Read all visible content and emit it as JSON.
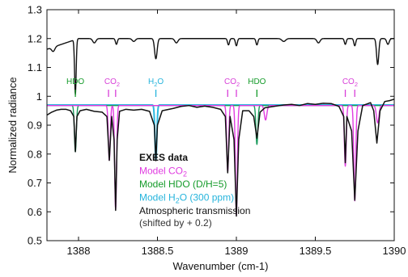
{
  "chart_data": {
    "type": "line",
    "xlabel": "Wavenumber (cm-1)",
    "ylabel": "Normalized radiance",
    "xlim": [
      1387.8,
      1390.0
    ],
    "ylim": [
      0.5,
      1.3
    ],
    "x_ticks": [
      {
        "value": 1388,
        "label": "1388"
      },
      {
        "value": 1388.5,
        "label": "1388.5"
      },
      {
        "value": 1389,
        "label": "1389"
      },
      {
        "value": 1389.5,
        "label": "1389.5"
      },
      {
        "value": 1390,
        "label": "1390"
      }
    ],
    "y_ticks": [
      {
        "value": 0.5,
        "label": "0.5"
      },
      {
        "value": 0.6,
        "label": "0.6"
      },
      {
        "value": 0.7,
        "label": "0.7"
      },
      {
        "value": 0.8,
        "label": "0.8"
      },
      {
        "value": 0.9,
        "label": "0.9"
      },
      {
        "value": 1.0,
        "label": "1"
      },
      {
        "value": 1.1,
        "label": "1.1"
      },
      {
        "value": 1.2,
        "label": "1.2"
      },
      {
        "value": 1.3,
        "label": "1.3"
      }
    ],
    "colors": {
      "exes": "#111111",
      "co2": "#e03ce0",
      "hdo": "#1a9a5c",
      "h2o": "#2cb8e0",
      "atm": "#111111",
      "hdo_label": "#159b2a",
      "co2_label": "#d83ed8",
      "h2o_label": "#26b4dc"
    },
    "legend": {
      "placement": "lower-center",
      "entries": [
        {
          "key": "exes",
          "parts": [
            {
              "t": "EXES data"
            }
          ],
          "bold": true,
          "color": "#111111"
        },
        {
          "key": "co2",
          "parts": [
            {
              "t": "Model CO"
            },
            {
              "t": "2",
              "sub": true
            }
          ],
          "color": "#e03ce0"
        },
        {
          "key": "hdo",
          "parts": [
            {
              "t": "Model HDO (D/H=5)"
            }
          ],
          "color": "#159b2a"
        },
        {
          "key": "h2o",
          "parts": [
            {
              "t": "Model H"
            },
            {
              "t": "2",
              "sub": true
            },
            {
              "t": "O (300 ppm)"
            }
          ],
          "color": "#26b4dc"
        },
        {
          "key": "atm",
          "parts": [
            {
              "t": "Atmospheric transmission"
            }
          ],
          "color": "#111111"
        },
        {
          "key": "atm_note",
          "parts": [
            {
              "t": "(shifted by + 0.2)"
            }
          ],
          "color": "#333333",
          "small": true
        }
      ]
    },
    "line_labels": [
      {
        "species": "hdo",
        "parts": [
          {
            "t": "HDO"
          }
        ],
        "positions": [
          1387.98
        ]
      },
      {
        "species": "co2",
        "parts": [
          {
            "t": "CO"
          },
          {
            "t": "2",
            "sub": true
          }
        ],
        "positions": [
          1388.19,
          1388.235
        ]
      },
      {
        "species": "h2o",
        "parts": [
          {
            "t": "H"
          },
          {
            "t": "2",
            "sub": true
          },
          {
            "t": "O"
          }
        ],
        "positions": [
          1388.49
        ]
      },
      {
        "species": "co2",
        "parts": [
          {
            "t": "CO"
          },
          {
            "t": "2",
            "sub": true
          }
        ],
        "positions": [
          1388.945,
          1389.0
        ]
      },
      {
        "species": "hdo",
        "parts": [
          {
            "t": "HDO"
          }
        ],
        "positions": [
          1389.13
        ]
      },
      {
        "species": "co2",
        "parts": [
          {
            "t": "CO"
          },
          {
            "t": "2",
            "sub": true
          }
        ],
        "positions": [
          1389.69,
          1389.75
        ]
      }
    ],
    "series": [
      {
        "name": "EXES data",
        "color_key": "exes",
        "points": [
          [
            1387.8,
            0.935
          ],
          [
            1387.83,
            0.945
          ],
          [
            1387.86,
            0.952
          ],
          [
            1387.89,
            0.955
          ],
          [
            1387.92,
            0.955
          ],
          [
            1387.95,
            0.95
          ],
          [
            1387.97,
            0.93
          ],
          [
            1387.98,
            0.808
          ],
          [
            1387.99,
            0.93
          ],
          [
            1388.01,
            0.95
          ],
          [
            1388.05,
            0.955
          ],
          [
            1388.1,
            0.948
          ],
          [
            1388.15,
            0.945
          ],
          [
            1388.18,
            0.93
          ],
          [
            1388.195,
            0.778
          ],
          [
            1388.21,
            0.93
          ],
          [
            1388.225,
            0.85
          ],
          [
            1388.235,
            0.605
          ],
          [
            1388.245,
            0.85
          ],
          [
            1388.26,
            0.948
          ],
          [
            1388.3,
            0.955
          ],
          [
            1388.35,
            0.952
          ],
          [
            1388.4,
            0.955
          ],
          [
            1388.45,
            0.948
          ],
          [
            1388.48,
            0.9
          ],
          [
            1388.49,
            0.777
          ],
          [
            1388.5,
            0.9
          ],
          [
            1388.53,
            0.95
          ],
          [
            1388.6,
            0.958
          ],
          [
            1388.65,
            0.965
          ],
          [
            1388.7,
            0.968
          ],
          [
            1388.75,
            0.962
          ],
          [
            1388.8,
            0.966
          ],
          [
            1388.85,
            0.962
          ],
          [
            1388.9,
            0.955
          ],
          [
            1388.93,
            0.93
          ],
          [
            1388.945,
            0.735
          ],
          [
            1388.96,
            0.93
          ],
          [
            1388.985,
            0.85
          ],
          [
            1389.0,
            0.585
          ],
          [
            1389.015,
            0.85
          ],
          [
            1389.04,
            0.95
          ],
          [
            1389.08,
            0.95
          ],
          [
            1389.11,
            0.93
          ],
          [
            1389.13,
            0.855
          ],
          [
            1389.15,
            0.945
          ],
          [
            1389.18,
            0.96
          ],
          [
            1389.2,
            0.962
          ],
          [
            1389.25,
            0.966
          ],
          [
            1389.3,
            0.97
          ],
          [
            1389.35,
            0.972
          ],
          [
            1389.4,
            0.968
          ],
          [
            1389.45,
            0.975
          ],
          [
            1389.5,
            0.972
          ],
          [
            1389.55,
            0.976
          ],
          [
            1389.6,
            0.975
          ],
          [
            1389.65,
            0.965
          ],
          [
            1389.68,
            0.93
          ],
          [
            1389.69,
            0.77
          ],
          [
            1389.7,
            0.93
          ],
          [
            1389.73,
            0.88
          ],
          [
            1389.75,
            0.64
          ],
          [
            1389.77,
            0.88
          ],
          [
            1389.8,
            0.968
          ],
          [
            1389.85,
            0.978
          ],
          [
            1389.87,
            0.95
          ],
          [
            1389.89,
            0.838
          ],
          [
            1389.91,
            0.95
          ],
          [
            1389.94,
            0.982
          ],
          [
            1389.97,
            0.985
          ],
          [
            1390.0,
            0.99
          ]
        ]
      },
      {
        "name": "Model CO2",
        "color_key": "co2",
        "baseline": 0.968,
        "lines": [
          [
            1388.195,
            0.19,
            0.006
          ],
          [
            1388.235,
            0.36,
            0.006
          ],
          [
            1388.945,
            0.23,
            0.006
          ],
          [
            1389.0,
            0.38,
            0.006
          ],
          [
            1389.185,
            0.05,
            0.008
          ],
          [
            1389.69,
            0.21,
            0.006
          ],
          [
            1389.75,
            0.33,
            0.006
          ],
          [
            1389.895,
            0.06,
            0.008
          ]
        ]
      },
      {
        "name": "Model HDO",
        "color_key": "hdo",
        "baseline": 0.968,
        "lines": [
          [
            1387.98,
            0.16,
            0.006
          ],
          [
            1389.13,
            0.135,
            0.006
          ]
        ]
      },
      {
        "name": "Model H2O",
        "color_key": "h2o",
        "baseline": 0.97,
        "lines": [
          [
            1388.49,
            0.19,
            0.006
          ]
        ]
      },
      {
        "name": "Atmospheric transmission",
        "color_key": "atm",
        "baseline": 1.2,
        "slope": [
          1387.8,
          1.163,
          1388.0,
          1.195
        ],
        "lines": [
          [
            1387.84,
            0.015,
            0.01
          ],
          [
            1387.98,
            0.19,
            0.005
          ],
          [
            1388.1,
            0.015,
            0.01
          ],
          [
            1388.24,
            0.02,
            0.006
          ],
          [
            1388.35,
            0.01,
            0.01
          ],
          [
            1388.49,
            0.07,
            0.008
          ],
          [
            1388.62,
            0.015,
            0.01
          ],
          [
            1388.95,
            0.022,
            0.006
          ],
          [
            1389.0,
            0.025,
            0.006
          ],
          [
            1389.13,
            0.022,
            0.006
          ],
          [
            1389.3,
            0.01,
            0.012
          ],
          [
            1389.52,
            0.015,
            0.01
          ],
          [
            1389.69,
            0.02,
            0.006
          ],
          [
            1389.75,
            0.025,
            0.006
          ],
          [
            1389.895,
            0.09,
            0.007
          ],
          [
            1389.96,
            0.02,
            0.008
          ]
        ]
      }
    ]
  }
}
